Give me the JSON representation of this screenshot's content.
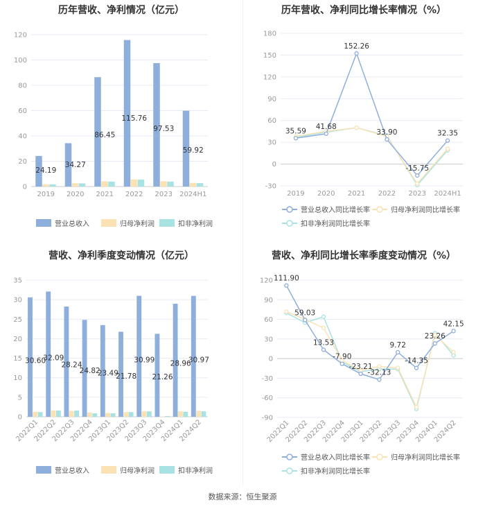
{
  "source": "数据来源：恒生聚源",
  "colors": {
    "revenue": "#8eaedc",
    "parent": "#fbe2b4",
    "nonrec": "#a9e2e3",
    "grid": "#e6ebf3",
    "axis": "#999999"
  },
  "chart_data": [
    {
      "type": "bar",
      "title": "历年营收、净利情况（亿元）",
      "categories": [
        "2019",
        "2020",
        "2021",
        "2022",
        "2023",
        "2024H1"
      ],
      "ylim": [
        0,
        120
      ],
      "yticks": [
        "0",
        "20",
        "40",
        "60",
        "80",
        "100",
        "120"
      ],
      "series": [
        {
          "name": "营业总收入",
          "values": [
            24.19,
            34.27,
            86.45,
            115.76,
            97.53,
            59.92
          ],
          "labels": [
            "24.19",
            "34.27",
            "86.45",
            "115.76",
            "97.53",
            "59.92"
          ]
        },
        {
          "name": "归母净利润",
          "values": [
            1.8,
            2.6,
            4.1,
            5.6,
            4.2,
            2.9
          ]
        },
        {
          "name": "扣非净利润",
          "values": [
            1.7,
            2.5,
            3.9,
            5.4,
            3.9,
            2.7
          ]
        }
      ],
      "legend": "bottom"
    },
    {
      "type": "line",
      "title": "历年营收、净利同比增长率情况（%）",
      "categories": [
        "2019",
        "2020",
        "2021",
        "2022",
        "2023",
        "2024H1"
      ],
      "ylim": [
        -30,
        180
      ],
      "yticks": [
        "-30",
        "0",
        "30",
        "60",
        "90",
        "120",
        "150",
        "180"
      ],
      "series": [
        {
          "name": "营业总收入同比增长率",
          "values": [
            35.59,
            41.68,
            152.26,
            33.9,
            -15.75,
            32.35
          ],
          "labels": [
            "35.59",
            "41.68",
            "152.26",
            "33.90",
            "-15.75",
            "32.35"
          ]
        },
        {
          "name": "归母净利润同比增长率",
          "values": [
            38,
            45,
            50,
            38,
            -27,
            21
          ]
        },
        {
          "name": "扣非净利润同比增长率",
          "values": [
            37,
            44,
            50,
            39,
            -29,
            19
          ]
        }
      ],
      "legend": "bottom"
    },
    {
      "type": "bar",
      "title": "营收、净利季度变动情况（亿元）",
      "categories": [
        "2022Q1",
        "2022Q2",
        "2022Q3",
        "2022Q4",
        "2023Q1",
        "2023Q2",
        "2023Q3",
        "2023Q4",
        "2024Q1",
        "2024Q2"
      ],
      "ylim": [
        0,
        35
      ],
      "yticks": [
        "0",
        "5",
        "10",
        "15",
        "20",
        "25",
        "30",
        "35"
      ],
      "series": [
        {
          "name": "营业总收入",
          "values": [
            30.6,
            32.09,
            28.24,
            24.82,
            23.49,
            21.78,
            30.99,
            21.26,
            28.96,
            30.97
          ],
          "labels": [
            "30.60",
            "32.09",
            "28.24",
            "24.82",
            "23.49",
            "21.78",
            "30.99",
            "21.26",
            "28.96",
            "30.97"
          ]
        },
        {
          "name": "归母净利润",
          "values": [
            1.3,
            1.6,
            1.5,
            1.1,
            1.0,
            1.2,
            1.4,
            0.1,
            1.4,
            1.5
          ]
        },
        {
          "name": "扣非净利润",
          "values": [
            1.2,
            1.6,
            1.6,
            0.9,
            0.9,
            1.2,
            1.4,
            0.2,
            1.3,
            1.4
          ]
        }
      ],
      "legend": "bottom"
    },
    {
      "type": "line",
      "title": "营收、净利同比增长率季度变动情况（%）",
      "categories": [
        "2022Q1",
        "2022Q2",
        "2022Q3",
        "2022Q4",
        "2023Q1",
        "2023Q2",
        "2023Q3",
        "2023Q4",
        "2024Q1",
        "2024Q2"
      ],
      "ylim": [
        -90,
        120
      ],
      "yticks": [
        "-90",
        "-60",
        "-30",
        "0",
        "30",
        "60",
        "90",
        "120"
      ],
      "series": [
        {
          "name": "营业总收入同比增长率",
          "values": [
            111.9,
            59.03,
            13.53,
            -7.9,
            -23.21,
            -32.13,
            9.72,
            -14.35,
            23.26,
            42.15
          ],
          "labels": [
            "111.90",
            "59.03",
            "13.53",
            "-7.90",
            "-23.21",
            "-32.13",
            "9.72",
            "-14.35",
            "23.26",
            "42.15"
          ]
        },
        {
          "name": "归母净利润同比增长率",
          "values": [
            72,
            60,
            47,
            -3,
            -18,
            -12,
            -14,
            -74,
            36,
            10
          ]
        },
        {
          "name": "扣非净利润同比增长率",
          "values": [
            70,
            55,
            64,
            -5,
            -20,
            -16,
            -16,
            -77,
            39,
            5
          ]
        }
      ],
      "legend": "bottom"
    }
  ]
}
